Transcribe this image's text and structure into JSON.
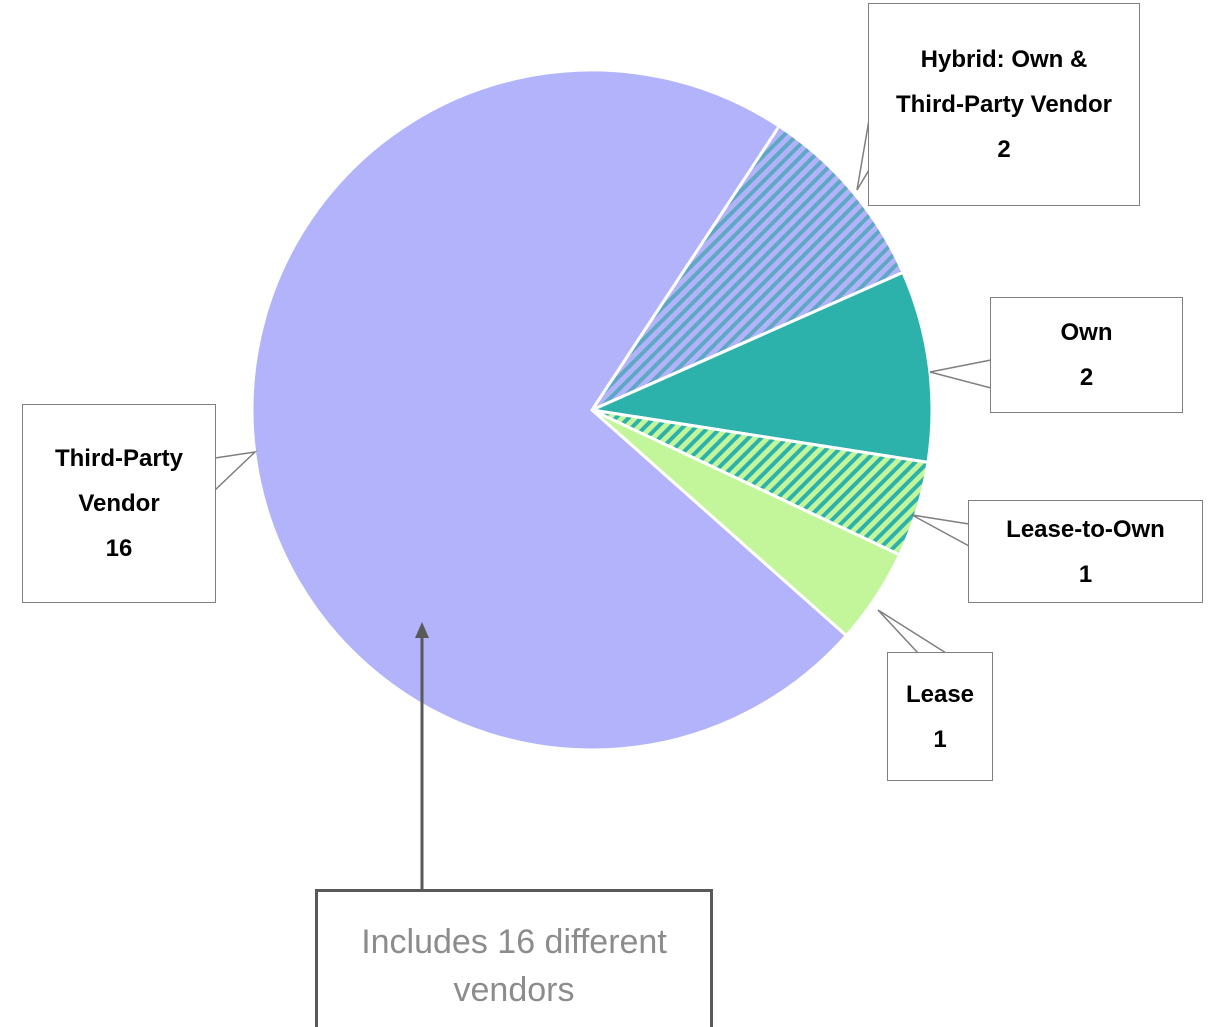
{
  "chart_data": {
    "type": "pie",
    "categories": [
      "Hybrid: Own & Third-Party Vendor",
      "Own",
      "Lease-to-Own",
      "Lease",
      "Third-Party Vendor"
    ],
    "values": [
      2,
      2,
      1,
      1,
      16
    ],
    "colors": [
      "#b3b3fc",
      "#2db2ab",
      "#c3f59a",
      "#c3f59a",
      "#b3b3fc"
    ],
    "hatch_colors": [
      "#5fa8c4",
      null,
      "#2db2ab",
      null,
      null
    ],
    "annotation": "Includes 16 different vendors"
  }
}
